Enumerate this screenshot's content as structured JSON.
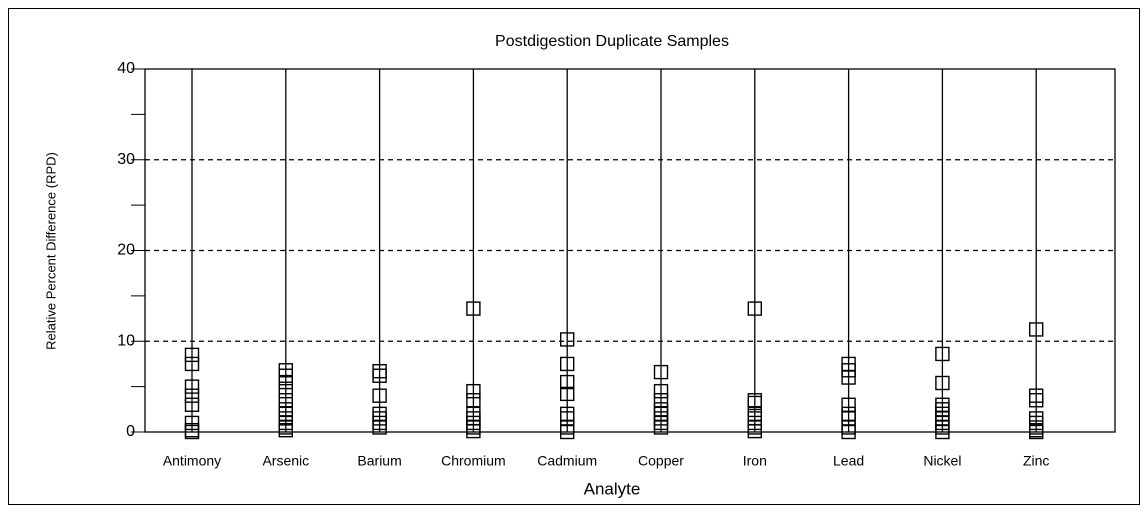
{
  "chart_data": {
    "type": "scatter",
    "title": "Postdigestion Duplicate Samples",
    "xlabel": "Analyte",
    "ylabel": "Relative Percent Difference (RPD)",
    "categories": [
      "Antimony",
      "Arsenic",
      "Barium",
      "Chromium",
      "Cadmium",
      "Copper",
      "Iron",
      "Lead",
      "Nickel",
      "Zinc"
    ],
    "values": [
      [
        8.5,
        7.5,
        5,
        4,
        3,
        1,
        0.2,
        0
      ],
      [
        6.8,
        6.2,
        5.5,
        4.5,
        3.5,
        2.5,
        2,
        1.5,
        1,
        0.5,
        0.2
      ],
      [
        6.7,
        6.2,
        4,
        2,
        1.5,
        1,
        0.5
      ],
      [
        13.6,
        4.5,
        3.5,
        2,
        1.5,
        1,
        0.5,
        0.1
      ],
      [
        10.2,
        7.5,
        5.5,
        4.2,
        2,
        1.5,
        0.5,
        0
      ],
      [
        6.6,
        4.5,
        3.5,
        2.5,
        2,
        1.5,
        1,
        0.5
      ],
      [
        13.6,
        3.5,
        3.2,
        2,
        1.5,
        1,
        0.5,
        0.1
      ],
      [
        7.5,
        6.8,
        6,
        3,
        2,
        1.5,
        0.5,
        0
      ],
      [
        8.6,
        5.4,
        3,
        2.5,
        2,
        1.5,
        1,
        0.5,
        0
      ],
      [
        11.3,
        4,
        3.5,
        1.5,
        1,
        0.5,
        0.2,
        0
      ]
    ],
    "color": "#000000",
    "marker": "square-open",
    "ylim": [
      0,
      40
    ],
    "yticks": [
      0,
      10,
      20,
      30,
      40
    ],
    "yminor_ticks": [
      5,
      15,
      25,
      35
    ],
    "grid": true
  }
}
